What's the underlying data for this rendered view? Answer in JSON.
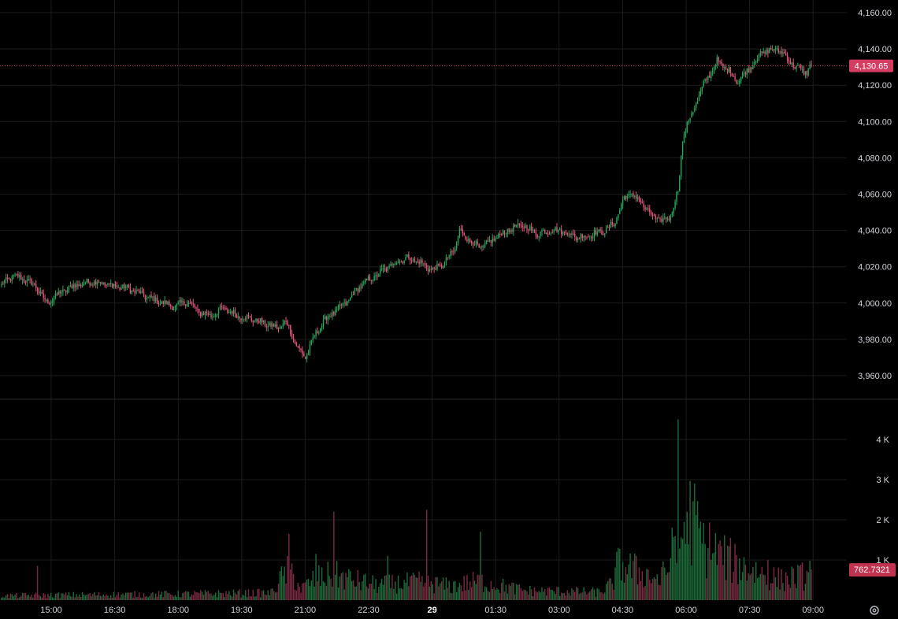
{
  "colors": {
    "background": "#000000",
    "grid": "#1c1c1c",
    "up": "#26a65b",
    "down": "#e0557a",
    "up_volume": "#1e6b3a",
    "down_volume": "#7a2a42",
    "axis_text": "#d1d4dc",
    "badge_price": "#d43d61",
    "badge_volume": "#c2334f"
  },
  "icons": {
    "settings": "gear-icon"
  },
  "chart_data": {
    "type": "candlestick",
    "price_axis": {
      "ylim": [
        3947,
        4165
      ],
      "ticks": [
        "4,160.00",
        "4,140.00",
        "4,120.00",
        "4,100.00",
        "4,080.00",
        "4,060.00",
        "4,040.00",
        "4,020.00",
        "4,000.00",
        "3,980.00",
        "3,960.00"
      ],
      "tick_values": [
        4160,
        4140,
        4120,
        4100,
        4080,
        4060,
        4040,
        4020,
        4000,
        3980,
        3960
      ]
    },
    "volume_axis": {
      "ylim": [
        0,
        4900
      ],
      "ticks": [
        "4 K",
        "3 K",
        "2 K",
        "1 K"
      ],
      "tick_values": [
        4000,
        3000,
        2000,
        1000
      ]
    },
    "time_axis": {
      "labels": [
        "15:00",
        "16:30",
        "18:00",
        "19:30",
        "21:00",
        "22:30",
        "29",
        "01:30",
        "03:00",
        "04:30",
        "06:00",
        "07:30",
        "09:00"
      ],
      "bold": [
        false,
        false,
        false,
        false,
        false,
        false,
        true,
        false,
        false,
        false,
        false,
        false,
        false
      ]
    },
    "last_price": 4130.65,
    "last_price_label": "4,130.65",
    "last_volume_label": "762.7321",
    "grid": true,
    "anchors": [
      [
        0,
        4010
      ],
      [
        8,
        4015
      ],
      [
        18,
        4012
      ],
      [
        24,
        4008
      ],
      [
        30,
        4000
      ],
      [
        40,
        4006
      ],
      [
        50,
        4010
      ],
      [
        62,
        4012
      ],
      [
        72,
        4010
      ],
      [
        85,
        4008
      ],
      [
        98,
        4003
      ],
      [
        108,
        4000
      ],
      [
        116,
        3998
      ],
      [
        124,
        4001
      ],
      [
        132,
        3995
      ],
      [
        140,
        3993
      ],
      [
        148,
        3997
      ],
      [
        158,
        3993
      ],
      [
        168,
        3991
      ],
      [
        178,
        3988
      ],
      [
        185,
        3986
      ],
      [
        190,
        3990
      ],
      [
        198,
        3975
      ],
      [
        203,
        3970
      ],
      [
        208,
        3980
      ],
      [
        215,
        3990
      ],
      [
        222,
        3995
      ],
      [
        230,
        4000
      ],
      [
        240,
        4010
      ],
      [
        250,
        4015
      ],
      [
        262,
        4022
      ],
      [
        272,
        4025
      ],
      [
        280,
        4022
      ],
      [
        288,
        4018
      ],
      [
        296,
        4022
      ],
      [
        303,
        4030
      ],
      [
        306,
        4040
      ],
      [
        312,
        4035
      ],
      [
        320,
        4030
      ],
      [
        330,
        4036
      ],
      [
        338,
        4040
      ],
      [
        348,
        4043
      ],
      [
        358,
        4038
      ],
      [
        366,
        4040
      ],
      [
        374,
        4040
      ],
      [
        385,
        4036
      ],
      [
        395,
        4038
      ],
      [
        404,
        4040
      ],
      [
        410,
        4045
      ],
      [
        416,
        4058
      ],
      [
        420,
        4060
      ],
      [
        426,
        4057
      ],
      [
        432,
        4050
      ],
      [
        440,
        4045
      ],
      [
        447,
        4048
      ],
      [
        452,
        4062
      ],
      [
        455,
        4090
      ],
      [
        458,
        4098
      ],
      [
        464,
        4110
      ],
      [
        470,
        4122
      ],
      [
        478,
        4133
      ],
      [
        486,
        4128
      ],
      [
        492,
        4122
      ],
      [
        500,
        4130
      ],
      [
        508,
        4138
      ],
      [
        518,
        4140
      ],
      [
        524,
        4136
      ],
      [
        530,
        4130
      ],
      [
        538,
        4127
      ],
      [
        541,
        4131
      ]
    ],
    "volume_profile": [
      [
        0,
        120
      ],
      [
        40,
        140
      ],
      [
        100,
        160
      ],
      [
        180,
        200
      ],
      [
        192,
        900
      ],
      [
        200,
        300
      ],
      [
        210,
        600
      ],
      [
        222,
        700
      ],
      [
        230,
        600
      ],
      [
        250,
        420
      ],
      [
        280,
        500
      ],
      [
        300,
        380
      ],
      [
        318,
        520
      ],
      [
        350,
        260
      ],
      [
        400,
        220
      ],
      [
        408,
        450
      ],
      [
        412,
        1000
      ],
      [
        440,
        560
      ],
      [
        452,
        1300
      ],
      [
        458,
        2500
      ],
      [
        470,
        1500
      ],
      [
        490,
        1000
      ],
      [
        520,
        560
      ],
      [
        541,
        700
      ]
    ],
    "volume_spikes": [
      [
        24,
        850
      ],
      [
        192,
        1650
      ],
      [
        210,
        1150
      ],
      [
        222,
        2200
      ],
      [
        258,
        1100
      ],
      [
        284,
        2250
      ],
      [
        320,
        1700
      ],
      [
        412,
        1300
      ],
      [
        448,
        1800
      ],
      [
        452,
        4500
      ],
      [
        458,
        2200
      ],
      [
        470,
        1400
      ],
      [
        474,
        1000
      ],
      [
        512,
        1000
      ],
      [
        540,
        980
      ],
      [
        541,
        762.7321
      ]
    ],
    "candle_count": 542
  }
}
